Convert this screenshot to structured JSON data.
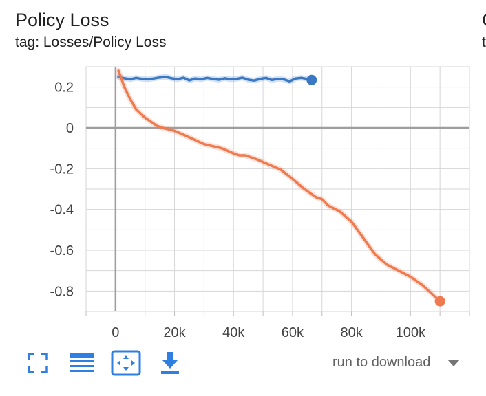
{
  "card": {
    "title": "Policy Loss",
    "tag": "tag: Losses/Policy Loss",
    "next_card_title_fragment": "C",
    "next_card_tag_fragment": "t"
  },
  "toolbar": {
    "fullscreen_icon": "fullscreen-icon",
    "data_table_icon": "data-table-icon",
    "fit_domain_icon": "fit-domain-icon",
    "download_icon": "download-icon",
    "accent_color": "#2f7fe3",
    "download_selector_label": "run to download"
  },
  "chart_data": {
    "type": "line",
    "xlim": [
      -10000,
      120000
    ],
    "ylim": [
      -0.9,
      0.3
    ],
    "x_ticks": [
      0,
      20000,
      40000,
      60000,
      80000,
      100000
    ],
    "x_tick_labels": [
      "0",
      "20k",
      "40k",
      "60k",
      "80k",
      "100k"
    ],
    "y_ticks": [
      0.2,
      0,
      -0.2,
      -0.4,
      -0.6,
      -0.8
    ],
    "y_tick_labels": [
      "0.2",
      "0",
      "-0.2",
      "-0.4",
      "-0.6",
      "-0.8"
    ],
    "grid": true,
    "series": [
      {
        "color": "#3a78c4",
        "x": [
          1000,
          3000,
          5000,
          7000,
          9000,
          11000,
          13000,
          15000,
          17000,
          19000,
          21000,
          23000,
          25000,
          27000,
          29000,
          31000,
          33000,
          35000,
          37000,
          39000,
          41000,
          43000,
          45000,
          47000,
          49000,
          51000,
          53000,
          55000,
          57000,
          59000,
          61000,
          63000,
          65000,
          66500
        ],
        "y": [
          0.25,
          0.243,
          0.238,
          0.245,
          0.24,
          0.238,
          0.242,
          0.247,
          0.25,
          0.243,
          0.238,
          0.246,
          0.233,
          0.242,
          0.238,
          0.245,
          0.24,
          0.236,
          0.243,
          0.238,
          0.24,
          0.246,
          0.236,
          0.232,
          0.24,
          0.245,
          0.235,
          0.24,
          0.238,
          0.228,
          0.242,
          0.245,
          0.24,
          0.235
        ]
      },
      {
        "color": "#f07a4f",
        "x": [
          1000,
          3000,
          5000,
          7000,
          10000,
          14000,
          16000,
          20000,
          24000,
          30000,
          36000,
          40000,
          42000,
          44000,
          48000,
          52000,
          56000,
          60000,
          64000,
          68000,
          70000,
          72000,
          76000,
          80000,
          84000,
          86000,
          88000,
          92000,
          96000,
          100000,
          104000,
          110000
        ],
        "y": [
          0.28,
          0.2,
          0.14,
          0.09,
          0.05,
          0.01,
          0.0,
          -0.015,
          -0.04,
          -0.08,
          -0.1,
          -0.125,
          -0.135,
          -0.135,
          -0.155,
          -0.18,
          -0.205,
          -0.25,
          -0.3,
          -0.34,
          -0.35,
          -0.38,
          -0.41,
          -0.46,
          -0.54,
          -0.58,
          -0.62,
          -0.67,
          -0.7,
          -0.73,
          -0.77,
          -0.85
        ]
      }
    ]
  }
}
